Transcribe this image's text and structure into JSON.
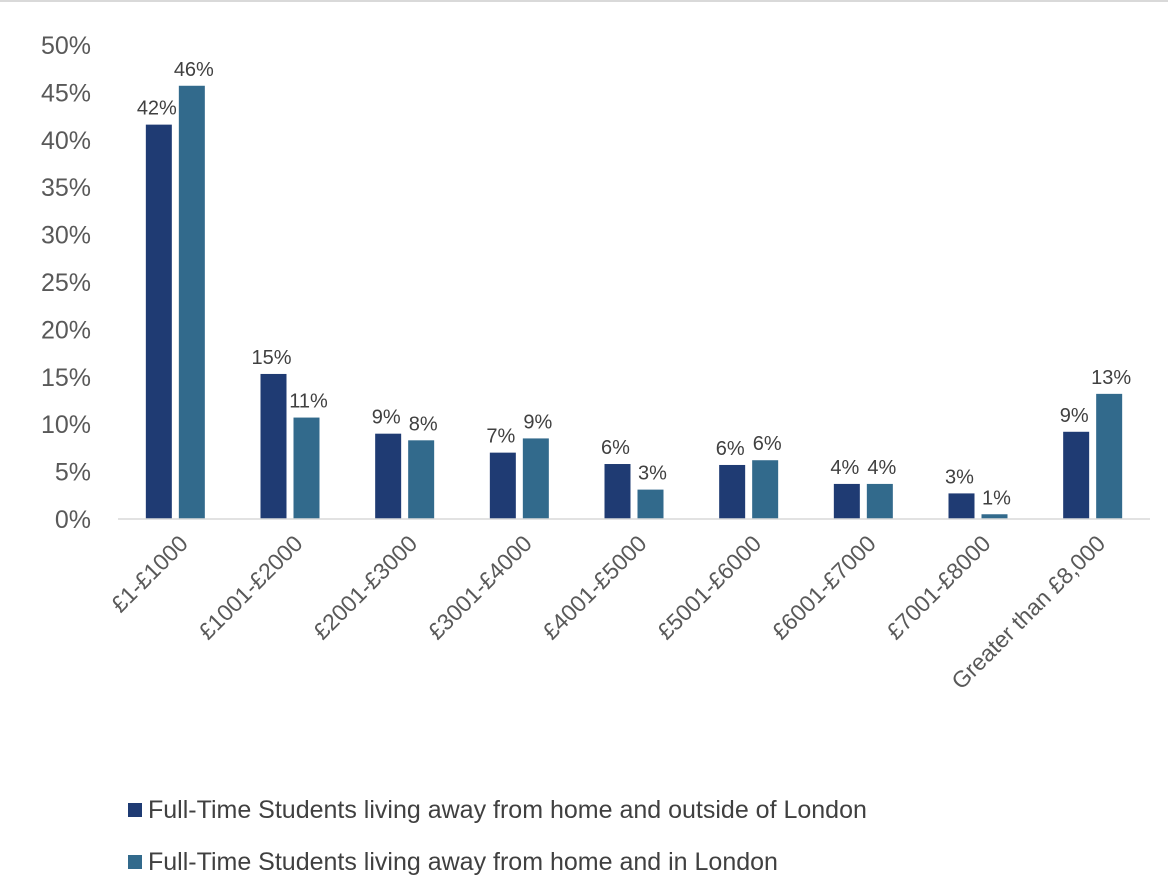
{
  "chart_data": {
    "type": "bar",
    "categories": [
      "£1-£1000",
      "£1001-£2000",
      "£2001-£3000",
      "£3001-£4000",
      "£4001-£5000",
      "£5001-£6000",
      "£6001-£7000",
      "£7001-£8000",
      "Greater than £8,000"
    ],
    "series": [
      {
        "name": "Full-Time Students living away from home and outside of London",
        "color": "#1f3b73",
        "values": [
          41.6,
          15.3,
          9.0,
          7.0,
          5.8,
          5.7,
          3.7,
          2.7,
          9.2
        ],
        "labels": [
          "42%",
          "15%",
          "9%",
          "7%",
          "6%",
          "6%",
          "4%",
          "3%",
          "9%"
        ]
      },
      {
        "name": "Full-Time Students living away from home and in London",
        "color": "#326a8c",
        "values": [
          45.7,
          10.7,
          8.3,
          8.5,
          3.1,
          6.2,
          3.7,
          0.5,
          13.2
        ],
        "labels": [
          "46%",
          "11%",
          "8%",
          "9%",
          "3%",
          "6%",
          "4%",
          "1%",
          "13%"
        ]
      }
    ],
    "ylim": [
      0,
      50
    ],
    "yticks": [
      "0%",
      "5%",
      "10%",
      "15%",
      "20%",
      "25%",
      "30%",
      "35%",
      "40%",
      "45%",
      "50%"
    ],
    "grid": false,
    "legend_position": "bottom",
    "xlabel": "",
    "ylabel": ""
  }
}
